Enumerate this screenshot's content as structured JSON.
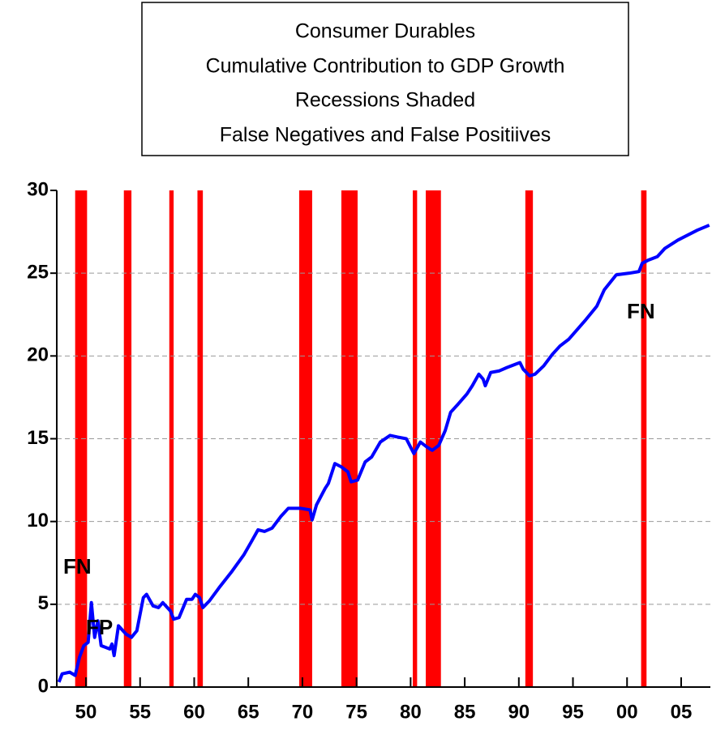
{
  "chart_data": {
    "type": "line",
    "title": [
      "Consumer Durables",
      "Cumulative Contribution to GDP Growth",
      "Recessions Shaded",
      "False Negatives and False Positiives"
    ],
    "annotations": [
      "FN",
      "FP",
      "FN"
    ],
    "x": [
      1947.5,
      1947.8,
      1948.5,
      1949.0,
      1949.4,
      1949.8,
      1950.2,
      1950.5,
      1950.8,
      1951.1,
      1951.4,
      1952.2,
      1952.4,
      1952.6,
      1953.0,
      1953.7,
      1954.2,
      1954.7,
      1955.3,
      1955.6,
      1956.2,
      1956.7,
      1957.1,
      1957.8,
      1958.1,
      1958.6,
      1959.3,
      1959.8,
      1960.1,
      1960.5,
      1960.8,
      1961.4,
      1962.3,
      1963.5,
      1964.6,
      1965.3,
      1965.9,
      1966.5,
      1967.2,
      1968.0,
      1968.7,
      1969.8,
      1970.7,
      1970.9,
      1971.3,
      1972.1,
      1972.4,
      1973.0,
      1973.6,
      1974.2,
      1974.5,
      1975.1,
      1975.8,
      1976.4,
      1977.2,
      1978.1,
      1978.8,
      1979.6,
      1980.3,
      1980.9,
      1981.5,
      1982.0,
      1982.6,
      1983.2,
      1983.7,
      1984.4,
      1985.2,
      1985.7,
      1986.3,
      1986.7,
      1986.9,
      1987.4,
      1988.2,
      1988.9,
      1989.7,
      1990.1,
      1990.4,
      1991.0,
      1991.5,
      1992.3,
      1993.1,
      1993.8,
      1994.6,
      1995.4,
      1996.2,
      1997.2,
      1997.9,
      1999.0,
      2000.2,
      2001.1,
      2001.4,
      2002.0,
      2002.8,
      2003.5,
      2004.7,
      2005.6,
      2006.5,
      2007.6
    ],
    "series": [
      {
        "color": "#0000ff",
        "values": [
          0.3,
          0.8,
          0.9,
          0.7,
          1.8,
          2.5,
          2.7,
          5.1,
          3.0,
          4.0,
          2.5,
          2.3,
          2.6,
          1.9,
          3.7,
          3.2,
          3.0,
          3.4,
          5.4,
          5.6,
          4.9,
          4.8,
          5.1,
          4.6,
          4.1,
          4.2,
          5.3,
          5.3,
          5.6,
          5.4,
          4.8,
          5.2,
          6.0,
          7.0,
          8.0,
          8.8,
          9.5,
          9.4,
          9.6,
          10.3,
          10.8,
          10.8,
          10.7,
          10.1,
          11.0,
          12.0,
          12.3,
          13.5,
          13.3,
          13.0,
          12.4,
          12.5,
          13.6,
          13.9,
          14.8,
          15.2,
          15.1,
          15.0,
          14.1,
          14.8,
          14.5,
          14.3,
          14.6,
          15.5,
          16.6,
          17.1,
          17.7,
          18.2,
          18.9,
          18.6,
          18.2,
          19.0,
          19.1,
          19.3,
          19.5,
          19.6,
          19.2,
          18.8,
          18.9,
          19.4,
          20.1,
          20.6,
          21.0,
          21.6,
          22.2,
          23.0,
          24.0,
          24.9,
          25.0,
          25.1,
          25.6,
          25.8,
          26.0,
          26.5,
          27.0,
          27.3,
          27.6,
          27.9
        ]
      }
    ],
    "recessions": [
      [
        1949.0,
        1950.1
      ],
      [
        1953.5,
        1954.2
      ],
      [
        1957.7,
        1958.1
      ],
      [
        1960.3,
        1960.8
      ],
      [
        1969.7,
        1970.9
      ],
      [
        1973.6,
        1975.1
      ],
      [
        1980.2,
        1980.6
      ],
      [
        1981.4,
        1982.8
      ],
      [
        1990.6,
        1991.3
      ],
      [
        2001.3,
        2001.8
      ]
    ],
    "recession_color": "#ff0000",
    "xlim": [
      1947.3,
      2007.7
    ],
    "ylim": [
      0,
      30
    ],
    "xticks": [
      {
        "value": 1950,
        "label": "50"
      },
      {
        "value": 1955,
        "label": "55"
      },
      {
        "value": 1960,
        "label": "60"
      },
      {
        "value": 1965,
        "label": "65"
      },
      {
        "value": 1970,
        "label": "70"
      },
      {
        "value": 1975,
        "label": "75"
      },
      {
        "value": 1980,
        "label": "80"
      },
      {
        "value": 1985,
        "label": "85"
      },
      {
        "value": 1990,
        "label": "90"
      },
      {
        "value": 1995,
        "label": "95"
      },
      {
        "value": 2000,
        "label": "00"
      },
      {
        "value": 2005,
        "label": "05"
      }
    ],
    "yticks": [
      0,
      5,
      10,
      15,
      20,
      25,
      30
    ],
    "grid": true
  }
}
